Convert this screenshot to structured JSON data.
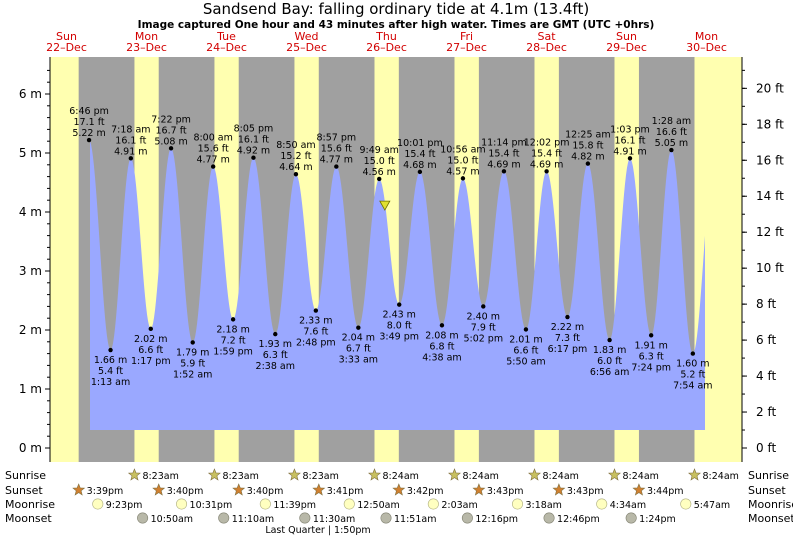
{
  "chart_data": {
    "type": "area",
    "title": "Sandsend Bay: falling  ordinary tide at 4.1m (13.4ft)",
    "subtitle": "Image captured One hour and 43 minutes after high water. Times are GMT (UTC +0hrs)",
    "colors": {
      "water": "#9aa8ff",
      "night": "#a0a0a0",
      "day": "#ffffb0",
      "daylabel": "#d20000",
      "marker": "#e0e030",
      "sunrise": "#c8c060",
      "sunset": "#d08030",
      "moon": "#ffffc0",
      "moonset": "#b8b8a8"
    },
    "days": [
      {
        "dow": "Sun",
        "date": "22–Dec"
      },
      {
        "dow": "Mon",
        "date": "23–Dec"
      },
      {
        "dow": "Tue",
        "date": "24–Dec"
      },
      {
        "dow": "Wed",
        "date": "25–Dec"
      },
      {
        "dow": "Thu",
        "date": "26–Dec"
      },
      {
        "dow": "Fri",
        "date": "27–Dec"
      },
      {
        "dow": "Sat",
        "date": "28–Dec"
      },
      {
        "dow": "Sun",
        "date": "29–Dec"
      },
      {
        "dow": "Mon",
        "date": "30–Dec"
      }
    ],
    "y_left": {
      "unit": "m",
      "ticks": [
        0,
        1,
        2,
        3,
        4,
        5,
        6
      ],
      "labels": [
        "0 m",
        "1 m",
        "2 m",
        "3 m",
        "4 m",
        "5 m",
        "6 m"
      ],
      "range": [
        -0.2,
        6.65
      ]
    },
    "y_right": {
      "unit": "ft",
      "ticks": [
        0,
        2,
        4,
        6,
        8,
        10,
        12,
        14,
        16,
        18,
        20
      ],
      "labels": [
        "0 ft",
        "2 ft",
        "4 ft",
        "6 ft",
        "8 ft",
        "10 ft",
        "12 ft",
        "14 ft",
        "16 ft",
        "18 ft",
        "20 ft"
      ]
    },
    "tides": [
      {
        "type": "high",
        "day": 0,
        "hour": 18.767,
        "m": 5.22,
        "time": "6:46 pm",
        "ft": "17.1 ft",
        "mtxt": "5.22 m"
      },
      {
        "type": "low",
        "day": 1,
        "hour": 1.217,
        "m": 1.66,
        "time": "1:13 am",
        "ft": "5.4 ft",
        "mtxt": "1.66 m"
      },
      {
        "type": "high",
        "day": 1,
        "hour": 7.3,
        "m": 4.91,
        "time": "7:18 am",
        "ft": "16.1 ft",
        "mtxt": "4.91 m"
      },
      {
        "type": "low",
        "day": 1,
        "hour": 13.283,
        "m": 2.02,
        "time": "1:17 pm",
        "ft": "6.6 ft",
        "mtxt": "2.02 m"
      },
      {
        "type": "high",
        "day": 1,
        "hour": 19.367,
        "m": 5.08,
        "time": "7:22 pm",
        "ft": "16.7 ft",
        "mtxt": "5.08 m"
      },
      {
        "type": "low",
        "day": 2,
        "hour": 1.867,
        "m": 1.79,
        "time": "1:52 am",
        "ft": "5.9 ft",
        "mtxt": "1.79 m"
      },
      {
        "type": "high",
        "day": 2,
        "hour": 8.0,
        "m": 4.77,
        "time": "8:00 am",
        "ft": "15.6 ft",
        "mtxt": "4.77 m"
      },
      {
        "type": "low",
        "day": 2,
        "hour": 13.983,
        "m": 2.18,
        "time": "1:59 pm",
        "ft": "7.2 ft",
        "mtxt": "2.18 m"
      },
      {
        "type": "high",
        "day": 2,
        "hour": 20.083,
        "m": 4.92,
        "time": "8:05 pm",
        "ft": "16.1 ft",
        "mtxt": "4.92 m"
      },
      {
        "type": "low",
        "day": 3,
        "hour": 2.633,
        "m": 1.93,
        "time": "2:38 am",
        "ft": "6.3 ft",
        "mtxt": "1.93 m"
      },
      {
        "type": "high",
        "day": 3,
        "hour": 8.833,
        "m": 4.64,
        "time": "8:50 am",
        "ft": "15.2 ft",
        "mtxt": "4.64 m"
      },
      {
        "type": "low",
        "day": 3,
        "hour": 14.8,
        "m": 2.33,
        "time": "2:48 pm",
        "ft": "7.6 ft",
        "mtxt": "2.33 m"
      },
      {
        "type": "high",
        "day": 3,
        "hour": 20.95,
        "m": 4.77,
        "time": "8:57 pm",
        "ft": "15.6 ft",
        "mtxt": "4.77 m"
      },
      {
        "type": "low",
        "day": 4,
        "hour": 3.55,
        "m": 2.04,
        "time": "3:33 am",
        "ft": "6.7 ft",
        "mtxt": "2.04 m"
      },
      {
        "type": "high",
        "day": 4,
        "hour": 9.817,
        "m": 4.56,
        "time": "9:49 am",
        "ft": "15.0 ft",
        "mtxt": "4.56 m"
      },
      {
        "type": "low",
        "day": 4,
        "hour": 15.817,
        "m": 2.43,
        "time": "3:49 pm",
        "ft": "8.0 ft",
        "mtxt": "2.43 m"
      },
      {
        "type": "high",
        "day": 4,
        "hour": 22.017,
        "m": 4.68,
        "time": "10:01 pm",
        "ft": "15.4 ft",
        "mtxt": "4.68 m"
      },
      {
        "type": "low",
        "day": 5,
        "hour": 4.633,
        "m": 2.08,
        "time": "4:38 am",
        "ft": "6.8 ft",
        "mtxt": "2.08 m"
      },
      {
        "type": "high",
        "day": 5,
        "hour": 10.933,
        "m": 4.57,
        "time": "10:56 am",
        "ft": "15.0 ft",
        "mtxt": "4.57 m"
      },
      {
        "type": "low",
        "day": 5,
        "hour": 17.033,
        "m": 2.4,
        "time": "5:02 pm",
        "ft": "7.9 ft",
        "mtxt": "2.40 m"
      },
      {
        "type": "high",
        "day": 5,
        "hour": 23.233,
        "m": 4.69,
        "time": "11:14 pm",
        "ft": "15.4 ft",
        "mtxt": "4.69 m"
      },
      {
        "type": "low",
        "day": 6,
        "hour": 5.833,
        "m": 2.01,
        "time": "5:50 am",
        "ft": "6.6 ft",
        "mtxt": "2.01 m"
      },
      {
        "type": "high",
        "day": 6,
        "hour": 12.033,
        "m": 4.69,
        "time": "12:02 pm",
        "ft": "15.4 ft",
        "mtxt": "4.69 m"
      },
      {
        "type": "low",
        "day": 6,
        "hour": 18.283,
        "m": 2.22,
        "time": "6:17 pm",
        "ft": "7.3 ft",
        "mtxt": "2.22 m"
      },
      {
        "type": "high",
        "day": 7,
        "hour": 0.417,
        "m": 4.82,
        "time": "12:25 am",
        "ft": "15.8 ft",
        "mtxt": "4.82 m"
      },
      {
        "type": "low",
        "day": 7,
        "hour": 6.933,
        "m": 1.83,
        "time": "6:56 am",
        "ft": "6.0 ft",
        "mtxt": "1.83 m"
      },
      {
        "type": "high",
        "day": 7,
        "hour": 13.05,
        "m": 4.91,
        "time": "1:03 pm",
        "ft": "16.1 ft",
        "mtxt": "4.91 m"
      },
      {
        "type": "low",
        "day": 7,
        "hour": 19.4,
        "m": 1.91,
        "time": "7:24 pm",
        "ft": "6.3 ft",
        "mtxt": "1.91 m"
      },
      {
        "type": "high",
        "day": 8,
        "hour": 1.467,
        "m": 5.05,
        "time": "1:28 am",
        "ft": "16.6 ft",
        "mtxt": "5.05 m"
      },
      {
        "type": "low",
        "day": 8,
        "hour": 7.9,
        "m": 1.6,
        "time": "7:54 am",
        "ft": "5.2 ft",
        "mtxt": "1.60 m"
      }
    ],
    "current": {
      "day": 4,
      "hour": 11.5,
      "m": 4.1
    },
    "sunrise": [
      {
        "day": 1,
        "hour": 8.383,
        "label": "8:23am"
      },
      {
        "day": 2,
        "hour": 8.383,
        "label": "8:23am"
      },
      {
        "day": 3,
        "hour": 8.383,
        "label": "8:23am"
      },
      {
        "day": 4,
        "hour": 8.4,
        "label": "8:24am"
      },
      {
        "day": 5,
        "hour": 8.4,
        "label": "8:24am"
      },
      {
        "day": 6,
        "hour": 8.4,
        "label": "8:24am"
      },
      {
        "day": 7,
        "hour": 8.4,
        "label": "8:24am"
      },
      {
        "day": 8,
        "hour": 8.4,
        "label": "8:24am"
      }
    ],
    "sunset": [
      {
        "day": 0,
        "hour": 15.65,
        "label": "3:39pm"
      },
      {
        "day": 1,
        "hour": 15.667,
        "label": "3:40pm"
      },
      {
        "day": 2,
        "hour": 15.667,
        "label": "3:40pm"
      },
      {
        "day": 3,
        "hour": 15.683,
        "label": "3:41pm"
      },
      {
        "day": 4,
        "hour": 15.7,
        "label": "3:42pm"
      },
      {
        "day": 5,
        "hour": 15.717,
        "label": "3:43pm"
      },
      {
        "day": 6,
        "hour": 15.717,
        "label": "3:43pm"
      },
      {
        "day": 7,
        "hour": 15.733,
        "label": "3:44pm"
      }
    ],
    "moonrise": [
      {
        "day": 0,
        "hour": 21.383,
        "label": "9:23pm"
      },
      {
        "day": 1,
        "hour": 22.517,
        "label": "10:31pm"
      },
      {
        "day": 2,
        "hour": 23.65,
        "label": "11:39pm"
      },
      {
        "day": 4,
        "hour": 0.833,
        "label": "12:50am"
      },
      {
        "day": 5,
        "hour": 2.05,
        "label": "2:03am"
      },
      {
        "day": 6,
        "hour": 3.3,
        "label": "3:18am"
      },
      {
        "day": 7,
        "hour": 4.567,
        "label": "4:34am"
      },
      {
        "day": 8,
        "hour": 5.783,
        "label": "5:47am"
      }
    ],
    "moonset": [
      {
        "day": 1,
        "hour": 10.833,
        "label": "10:50am"
      },
      {
        "day": 2,
        "hour": 11.167,
        "label": "11:10am"
      },
      {
        "day": 3,
        "hour": 11.5,
        "label": "11:30am"
      },
      {
        "day": 4,
        "hour": 11.85,
        "label": "11:51am"
      },
      {
        "day": 5,
        "hour": 12.267,
        "label": "12:16pm"
      },
      {
        "day": 6,
        "hour": 12.767,
        "label": "12:46pm"
      },
      {
        "day": 7,
        "hour": 13.4,
        "label": "1:24pm"
      }
    ],
    "row_labels": {
      "sunrise": "Sunrise",
      "sunset": "Sunset",
      "moonrise": "Moonrise",
      "moonset": "Moonset"
    },
    "moon_phase": "Last Quarter | 1:50pm"
  }
}
